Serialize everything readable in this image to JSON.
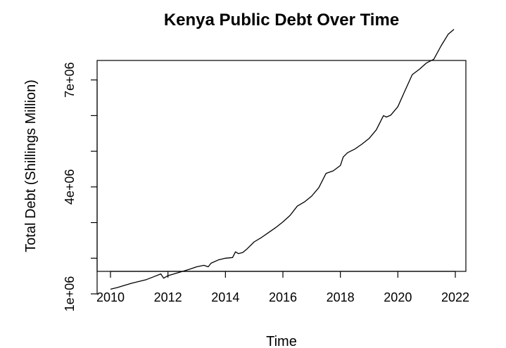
{
  "chart_data": {
    "type": "line",
    "title": "Kenya Public Debt Over Time",
    "xlabel": "Time",
    "ylabel": "Total Debt (Shillings Million)",
    "xlim": [
      2010,
      2022
    ],
    "ylim": [
      1000000,
      8000000
    ],
    "x_ticks": [
      2010,
      2012,
      2014,
      2016,
      2018,
      2020,
      2022
    ],
    "x_tick_labels": [
      "2010",
      "2012",
      "2014",
      "2016",
      "2018",
      "2020",
      "2022"
    ],
    "y_ticks": [
      1000000,
      2000000,
      3000000,
      4000000,
      5000000,
      6000000,
      7000000
    ],
    "y_tick_labels": [
      "1e+06",
      "",
      "",
      "4e+06",
      "",
      "",
      "7e+06"
    ],
    "grid": false,
    "legend": "none",
    "series": [
      {
        "color": "#000000",
        "x": [
          2010.0,
          2010.25,
          2010.5,
          2010.75,
          2011.0,
          2011.25,
          2011.5,
          2011.75,
          2011.85,
          2012.0,
          2012.25,
          2012.5,
          2012.75,
          2013.0,
          2013.25,
          2013.4,
          2013.5,
          2013.75,
          2014.0,
          2014.25,
          2014.35,
          2014.45,
          2014.6,
          2014.75,
          2015.0,
          2015.25,
          2015.5,
          2015.75,
          2016.0,
          2016.25,
          2016.5,
          2016.75,
          2017.0,
          2017.25,
          2017.5,
          2017.75,
          2018.0,
          2018.1,
          2018.25,
          2018.5,
          2018.75,
          2019.0,
          2019.25,
          2019.5,
          2019.6,
          2019.75,
          2020.0,
          2020.25,
          2020.5,
          2020.75,
          2021.0,
          2021.25,
          2021.5,
          2021.75,
          2021.95
        ],
        "y": [
          1130000,
          1180000,
          1240000,
          1300000,
          1350000,
          1400000,
          1480000,
          1560000,
          1440000,
          1510000,
          1570000,
          1630000,
          1690000,
          1760000,
          1800000,
          1760000,
          1860000,
          1950000,
          2000000,
          2020000,
          2180000,
          2130000,
          2160000,
          2260000,
          2460000,
          2580000,
          2720000,
          2860000,
          3020000,
          3200000,
          3460000,
          3580000,
          3740000,
          3980000,
          4380000,
          4450000,
          4600000,
          4840000,
          4960000,
          5060000,
          5200000,
          5360000,
          5600000,
          6000000,
          5960000,
          6010000,
          6250000,
          6700000,
          7150000,
          7300000,
          7480000,
          7580000,
          7950000,
          8280000,
          8420000
        ]
      }
    ]
  }
}
